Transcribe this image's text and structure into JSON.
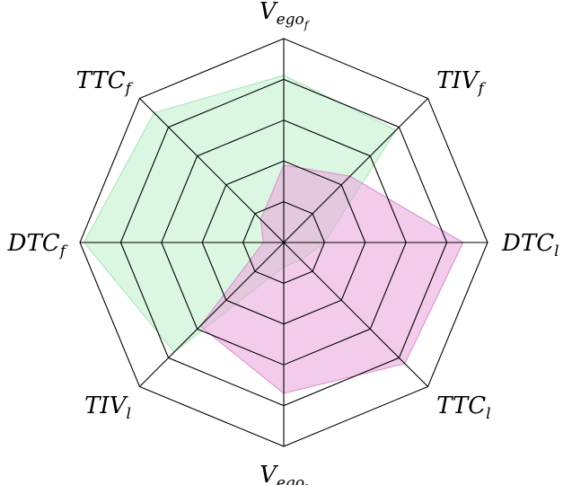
{
  "chart_data": {
    "type": "radar",
    "grid": true,
    "rlim": [
      0,
      5
    ],
    "rings": [
      1,
      2,
      3,
      4,
      5
    ],
    "axes": [
      {
        "main": "V",
        "sub": "ego",
        "subsub": "f"
      },
      {
        "main": "TIV",
        "sub": "f",
        "subsub": ""
      },
      {
        "main": "DTC",
        "sub": "l",
        "subsub": ""
      },
      {
        "main": "TTC",
        "sub": "l",
        "subsub": ""
      },
      {
        "main": "V",
        "sub": "ego",
        "subsub": "l"
      },
      {
        "main": "TIV",
        "sub": "l",
        "subsub": ""
      },
      {
        "main": "DTC",
        "sub": "f",
        "subsub": ""
      },
      {
        "main": "TTC",
        "sub": "f",
        "subsub": ""
      }
    ],
    "series": [
      {
        "color": "#bdf0c9",
        "stroke": "#a6e3b5",
        "opacity": 0.55,
        "values": [
          4.1,
          3.9,
          1.0,
          0.6,
          0.6,
          3.8,
          4.9,
          4.5
        ]
      },
      {
        "color": "#e9a3dd",
        "stroke": "#d78ccb",
        "opacity": 0.55,
        "values": [
          1.9,
          2.3,
          4.4,
          4.2,
          3.7,
          2.9,
          0.5,
          0.8
        ]
      }
    ]
  }
}
